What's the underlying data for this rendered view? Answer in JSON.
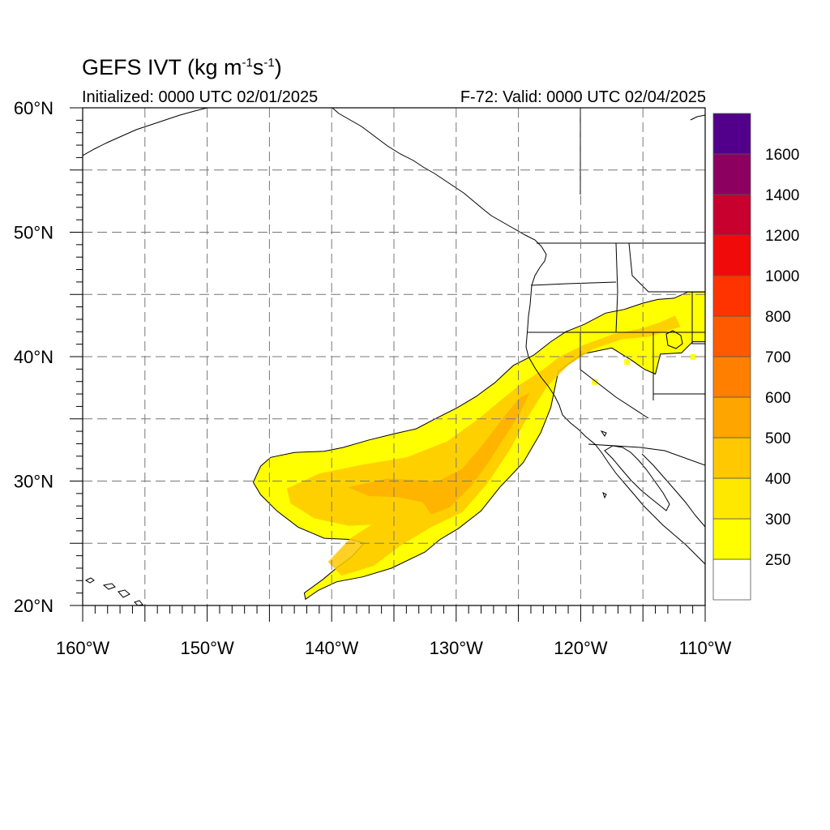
{
  "title": {
    "model": "GEFS IVT",
    "units_prefix": "(kg m",
    "exp1": "-1",
    "units_mid": "s",
    "exp2": "-1",
    "units_suffix": ")"
  },
  "initialized": "Initialized: 0000 UTC 02/01/2025",
  "valid": "F-72: Valid: 0000 UTC 02/04/2025",
  "map": {
    "projection": "cylindrical-equidistant",
    "lon_range": [
      -160,
      -110
    ],
    "lat_range": [
      20,
      60
    ],
    "grid": "dashed",
    "lon_ticks": [
      {
        "value": -160,
        "label": "160°W"
      },
      {
        "value": -150,
        "label": "150°W"
      },
      {
        "value": -140,
        "label": "140°W"
      },
      {
        "value": -130,
        "label": "130°W"
      },
      {
        "value": -120,
        "label": "120°W"
      },
      {
        "value": -110,
        "label": "110°W"
      }
    ],
    "lat_ticks": [
      {
        "value": 20,
        "label": "20°N"
      },
      {
        "value": 30,
        "label": "30°N"
      },
      {
        "value": 40,
        "label": "40°N"
      },
      {
        "value": 50,
        "label": "50°N"
      },
      {
        "value": 60,
        "label": "60°N"
      }
    ],
    "ivt_plume_outline": [
      [
        -142.1,
        20.5
      ],
      [
        -141.1,
        21.2
      ],
      [
        -139.6,
        21.9
      ],
      [
        -137.5,
        22.3
      ],
      [
        -135.2,
        23.0
      ],
      [
        -132.5,
        24.3
      ],
      [
        -131.3,
        25.3
      ],
      [
        -129.8,
        26.2
      ],
      [
        -128.0,
        27.6
      ],
      [
        -126.5,
        29.5
      ],
      [
        -124.6,
        31.5
      ],
      [
        -123.2,
        33.9
      ],
      [
        -122.4,
        35.9
      ],
      [
        -121.8,
        38.8
      ],
      [
        -119.9,
        40.2
      ],
      [
        -117.5,
        40.7
      ],
      [
        -115.9,
        39.7
      ],
      [
        -114.9,
        39.0
      ],
      [
        -114.0,
        38.6
      ],
      [
        -113.6,
        40.2
      ],
      [
        -111.9,
        40.3
      ],
      [
        -111.0,
        41.2
      ],
      [
        -110.0,
        41.2
      ],
      [
        -110.0,
        45.2
      ],
      [
        -111.4,
        45.2
      ],
      [
        -112.5,
        44.7
      ],
      [
        -113.8,
        44.6
      ],
      [
        -115.0,
        44.3
      ],
      [
        -116.5,
        43.8
      ],
      [
        -118.0,
        43.5
      ],
      [
        -119.7,
        42.6
      ],
      [
        -121.2,
        42.0
      ],
      [
        -122.4,
        41.2
      ],
      [
        -123.8,
        40.1
      ],
      [
        -125.4,
        39.3
      ],
      [
        -126.9,
        37.9
      ],
      [
        -128.4,
        36.8
      ],
      [
        -129.9,
        35.9
      ],
      [
        -131.7,
        35.0
      ],
      [
        -133.2,
        34.2
      ],
      [
        -135.0,
        33.8
      ],
      [
        -137.0,
        33.3
      ],
      [
        -139.1,
        32.7
      ],
      [
        -140.6,
        32.4
      ],
      [
        -143.0,
        32.3
      ],
      [
        -144.9,
        31.9
      ],
      [
        -145.7,
        31.2
      ],
      [
        -146.3,
        29.9
      ],
      [
        -145.7,
        28.9
      ],
      [
        -144.4,
        27.6
      ],
      [
        -142.7,
        26.3
      ],
      [
        -140.6,
        25.4
      ],
      [
        -138.4,
        25.3
      ],
      [
        -137.4,
        25.0
      ],
      [
        -138.4,
        23.9
      ],
      [
        -139.5,
        23.1
      ],
      [
        -140.7,
        22.1
      ],
      [
        -142.2,
        21.0
      ]
    ],
    "ivt_core_400": [
      [
        -141.0,
        30.6
      ],
      [
        -137.6,
        31.3
      ],
      [
        -134.0,
        31.9
      ],
      [
        -130.7,
        33.2
      ],
      [
        -128.2,
        35.0
      ],
      [
        -126.3,
        36.6
      ],
      [
        -124.8,
        37.8
      ],
      [
        -123.1,
        38.9
      ],
      [
        -121.7,
        40.0
      ],
      [
        -119.6,
        41.0
      ],
      [
        -117.4,
        41.8
      ],
      [
        -115.0,
        42.3
      ],
      [
        -113.5,
        42.8
      ],
      [
        -112.4,
        43.3
      ],
      [
        -112.0,
        42.4
      ],
      [
        -114.5,
        41.6
      ],
      [
        -116.7,
        41.4
      ],
      [
        -119.0,
        40.6
      ],
      [
        -121.0,
        39.3
      ],
      [
        -122.7,
        37.6
      ],
      [
        -124.4,
        34.9
      ],
      [
        -125.7,
        32.5
      ],
      [
        -127.5,
        29.8
      ],
      [
        -129.5,
        27.5
      ],
      [
        -132.0,
        26.3
      ],
      [
        -134.5,
        24.8
      ],
      [
        -136.6,
        23.2
      ],
      [
        -139.2,
        22.4
      ],
      [
        -140.3,
        23.5
      ],
      [
        -138.5,
        25.4
      ],
      [
        -136.8,
        26.5
      ],
      [
        -138.6,
        26.4
      ],
      [
        -141.4,
        27.0
      ],
      [
        -143.3,
        28.2
      ],
      [
        -143.6,
        29.4
      ]
    ],
    "ivt_core_500": [
      [
        -138.7,
        29.5
      ],
      [
        -135.5,
        30.2
      ],
      [
        -131.4,
        30.0
      ],
      [
        -129.5,
        31.0
      ],
      [
        -127.8,
        33.0
      ],
      [
        -126.3,
        35.0
      ],
      [
        -124.9,
        36.7
      ],
      [
        -124.1,
        37.1
      ],
      [
        -125.0,
        35.2
      ],
      [
        -126.2,
        33.4
      ],
      [
        -127.4,
        31.5
      ],
      [
        -128.8,
        29.6
      ],
      [
        -130.5,
        27.9
      ],
      [
        -132.0,
        27.3
      ],
      [
        -132.7,
        28.3
      ],
      [
        -134.6,
        28.7
      ],
      [
        -137.0,
        28.8
      ]
    ],
    "ivt_spots": [
      {
        "lon": -111.0,
        "lat": 40.0
      },
      {
        "lon": -116.3,
        "lat": 39.6
      },
      {
        "lon": -118.9,
        "lat": 38.0
      },
      {
        "lon": -114.4,
        "lat": 40.2
      }
    ]
  },
  "colorbar": {
    "levels": [
      {
        "label": "",
        "color": "#ffffff"
      },
      {
        "label": "250",
        "color": "#ffff00"
      },
      {
        "label": "300",
        "color": "#ffe800"
      },
      {
        "label": "400",
        "color": "#ffc800"
      },
      {
        "label": "500",
        "color": "#ffa500"
      },
      {
        "label": "600",
        "color": "#ff8000"
      },
      {
        "label": "700",
        "color": "#ff5a00"
      },
      {
        "label": "800",
        "color": "#ff3300"
      },
      {
        "label": "1000",
        "color": "#f00a0a"
      },
      {
        "label": "1200",
        "color": "#c8002e"
      },
      {
        "label": "1400",
        "color": "#8c0060"
      },
      {
        "label": "1600",
        "color": "#52008c"
      }
    ]
  }
}
